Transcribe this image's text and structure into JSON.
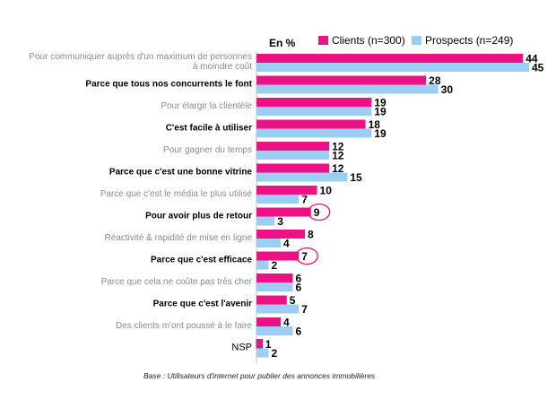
{
  "chart_data": {
    "type": "bar",
    "orientation": "horizontal",
    "unit_label": "En %",
    "categories": [
      "Pour communiquer auprès d'un maximum de personnes à moindre coût",
      "Parce que tous nos concurrents le font",
      "Pour élargir la clientèle",
      "C'est facile à utiliser",
      "Pour gagner du temps",
      "Parce que c'est une bonne vitrine",
      "Parce que c'est le média le plus utilisé",
      "Pour avoir plus de retour",
      "Réactivité & rapidité de mise en ligne",
      "Parce que c'est efficace",
      "Parce que cela ne coûte pas très cher",
      "Parce que c'est l'avenir",
      "Des clients m'ont poussé à le faire",
      "NSP"
    ],
    "category_emphasis": [
      false,
      true,
      false,
      true,
      false,
      true,
      false,
      true,
      false,
      true,
      false,
      true,
      false,
      false
    ],
    "series": [
      {
        "name": "Clients (n=300)",
        "color": "#ee1185",
        "values": [
          44,
          28,
          19,
          18,
          12,
          12,
          10,
          9,
          8,
          7,
          6,
          5,
          4,
          1
        ]
      },
      {
        "name": "Prospects (n=249)",
        "color": "#9dcdf3",
        "values": [
          45,
          30,
          19,
          19,
          12,
          15,
          7,
          3,
          4,
          2,
          6,
          7,
          6,
          2
        ]
      }
    ],
    "circled_values": [
      {
        "series": 0,
        "category": 7
      },
      {
        "series": 0,
        "category": 9
      }
    ],
    "legend_position": "top-right",
    "grid": false,
    "xlim": [
      0,
      45
    ]
  },
  "footnote": "Base : Utilisateurs d'internet pour publier des annonces immobilières"
}
